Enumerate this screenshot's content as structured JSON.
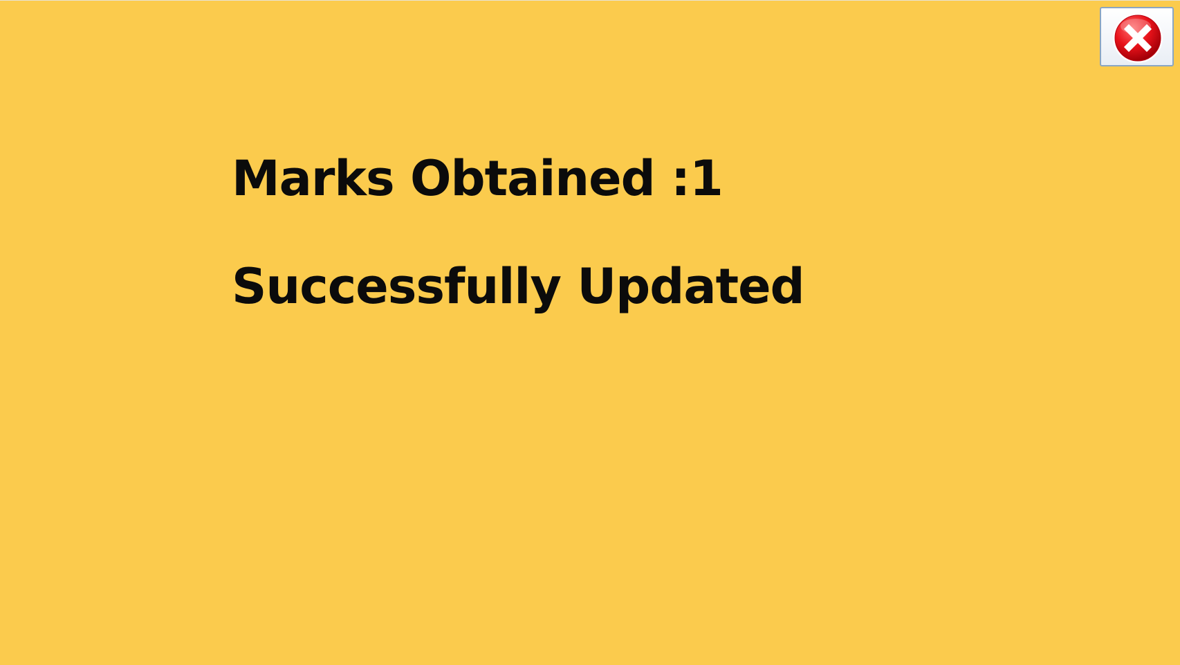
{
  "window": {
    "background_color": "#fbcb4d"
  },
  "close_button": {
    "icon": "close-icon",
    "color": "#e8121a"
  },
  "result": {
    "marks_text": "Marks Obtained :1",
    "status_text": "Successfully Updated"
  }
}
